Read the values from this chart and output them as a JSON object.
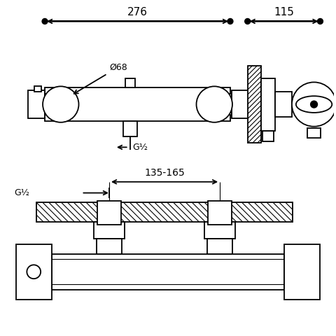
{
  "bg_color": "#ffffff",
  "line_color": "#000000",
  "lw": 1.3,
  "label276": "276",
  "label115": "115",
  "label_phi68": "Ø68",
  "label_g12_top": "G½",
  "label_g12_bot": "G½",
  "label_135165": "135-165"
}
